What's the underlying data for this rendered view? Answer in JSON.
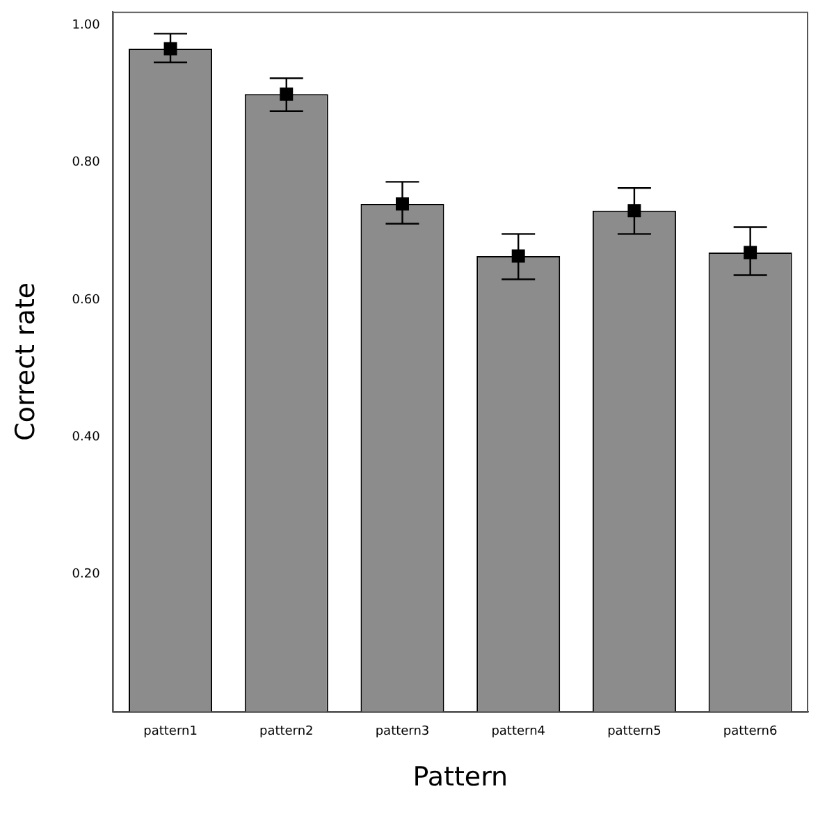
{
  "chart_data": {
    "type": "bar",
    "xlabel": "Pattern",
    "ylabel": "Correct rate",
    "categories": [
      "pattern1",
      "pattern2",
      "pattern3",
      "pattern4",
      "pattern5",
      "pattern6"
    ],
    "series": [
      {
        "color": "#8c8c8c",
        "values": [
          0.966,
          0.9,
          0.74,
          0.664,
          0.73,
          0.669
        ],
        "errors": [
          [
            0.946,
            0.988
          ],
          [
            0.875,
            0.923
          ],
          [
            0.711,
            0.772
          ],
          [
            0.63,
            0.696
          ],
          [
            0.696,
            0.763
          ],
          [
            0.636,
            0.706
          ]
        ]
      },
      {
        "type": "scatter",
        "color": "#000000",
        "x": [
          "pattern1",
          "pattern2",
          "pattern3",
          "pattern4",
          "pattern5",
          "pattern6"
        ],
        "values": [
          0.966,
          0.9,
          0.74,
          0.664,
          0.73,
          0.669
        ]
      }
    ],
    "marker": "square",
    "ylim": [
      0,
      1.02
    ],
    "yticks": [
      {
        "value": 0.2,
        "label": "0.20"
      },
      {
        "value": 0.4,
        "label": "0.40"
      },
      {
        "value": 0.6,
        "label": "0.60"
      },
      {
        "value": 0.8,
        "label": "0.80"
      },
      {
        "value": 1.0,
        "label": "1.00"
      }
    ],
    "grid": false,
    "legend": false
  }
}
